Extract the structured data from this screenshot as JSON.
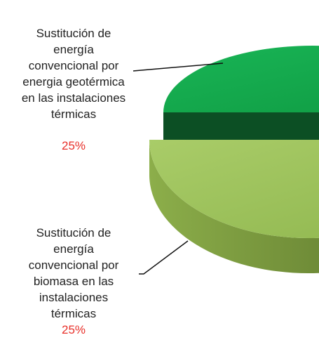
{
  "chart_data": {
    "type": "pie",
    "categories": [
      "Sustitución de\nenergía\nconvencional por\nenergia geotérmica\nen las instalaciones\ntérmicas",
      "Sustitución de\nenergía\nconvencional por\nbiomasa en las\ninstalaciones\ntérmicas"
    ],
    "values": [
      25,
      25
    ],
    "value_labels": [
      "25%",
      "25%"
    ],
    "colors": [
      "#13a84c",
      "#9cc35a"
    ]
  }
}
